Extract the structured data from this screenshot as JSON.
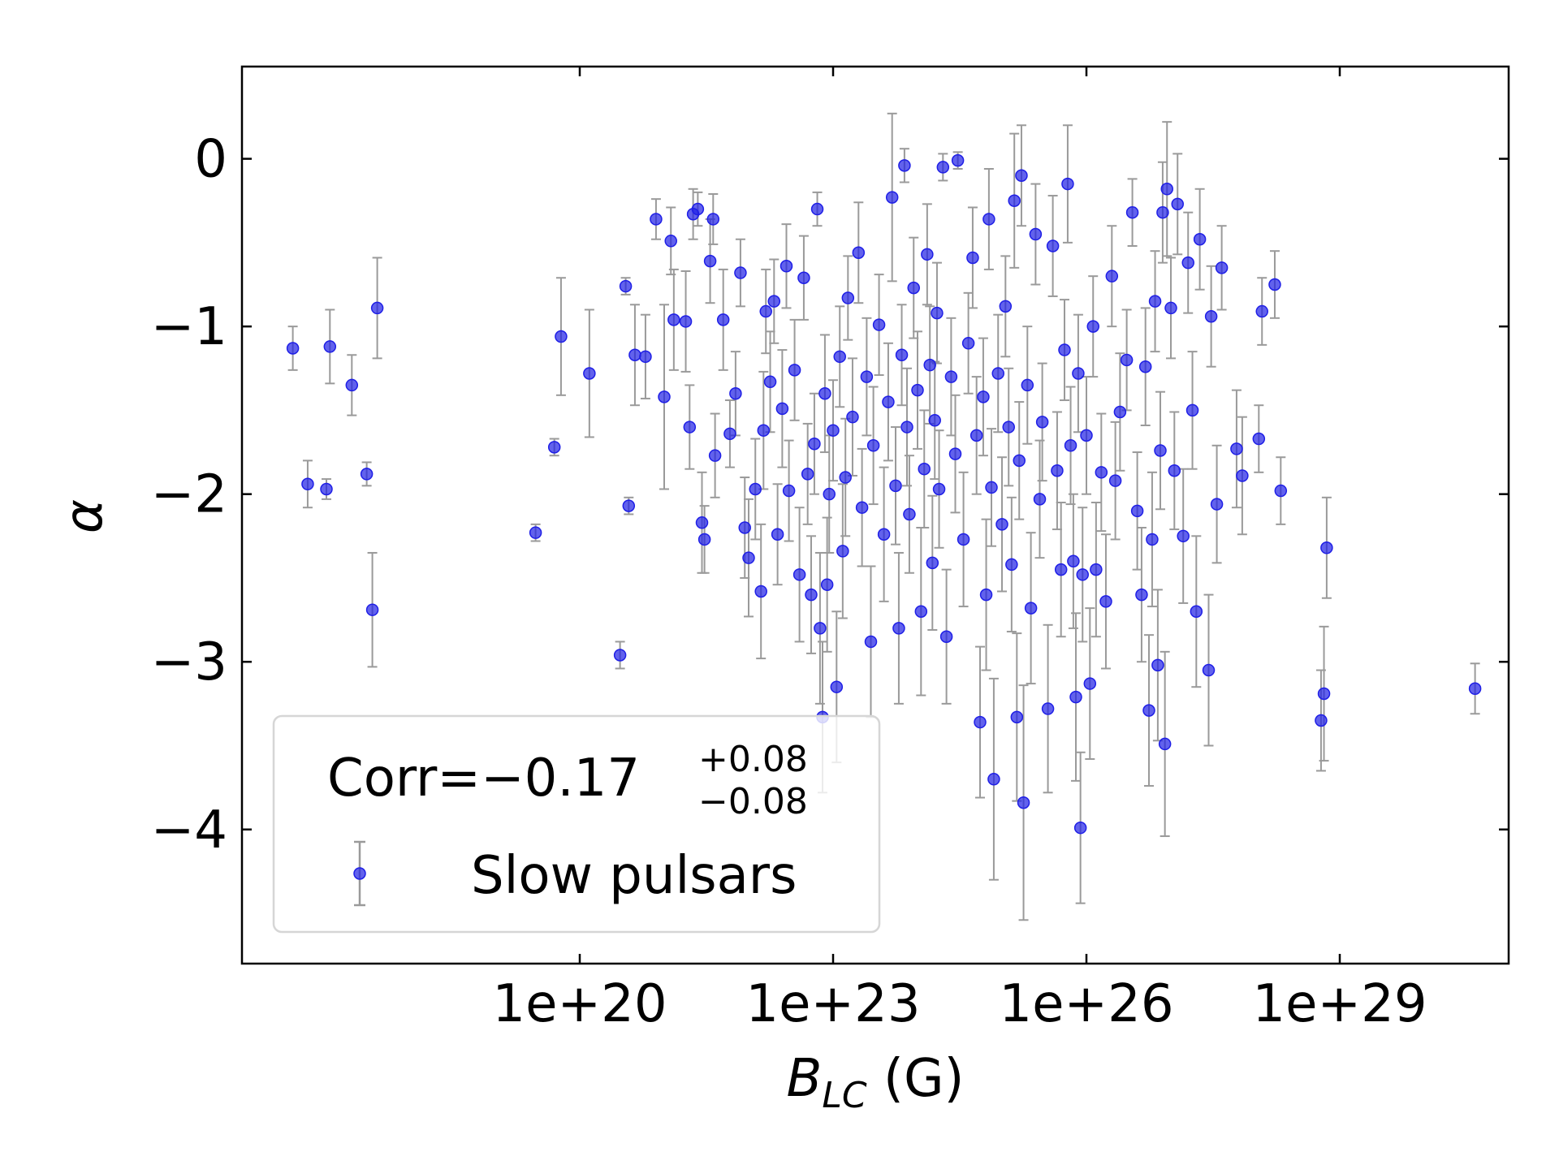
{
  "chart_data": {
    "type": "scatter",
    "xscale": "log",
    "xlim": [
      1e+16,
      1e+31
    ],
    "ylim": [
      -4.8,
      0.55
    ],
    "xticks": [
      1e+20,
      1e+23,
      1e+26,
      1e+29
    ],
    "xtick_labels": [
      "1e+20",
      "1e+23",
      "1e+26",
      "1e+29"
    ],
    "yticks": [
      0,
      -1,
      -2,
      -3,
      -4
    ],
    "ytick_labels": [
      "0",
      "−1",
      "−2",
      "−3",
      "−4"
    ],
    "xlabel_main": "B",
    "xlabel_sub": "LC",
    "xlabel_unit": " (G)",
    "ylabel": "α",
    "legend": {
      "placement": "lower-left",
      "title_prefix": "Corr=−0.17",
      "title_sup": "+0.08",
      "title_sub": "−0.08",
      "entry": "Slow pulsars"
    },
    "colors": {
      "marker": "#1f1fe6",
      "errorbar": "#9a9a9a"
    },
    "series": [
      {
        "name": "Slow pulsars",
        "points": [
          [
            4e+16,
            -1.13,
            0.13
          ],
          [
            6e+16,
            -1.94,
            0.14
          ],
          [
            1e+17,
            -1.97,
            0.06
          ],
          [
            1.1e+17,
            -1.12,
            0.22
          ],
          [
            2e+17,
            -1.35,
            0.18
          ],
          [
            3e+17,
            -1.88,
            0.07
          ],
          [
            3.5e+17,
            -2.69,
            0.34
          ],
          [
            4e+17,
            -0.89,
            0.3
          ],
          [
            3e+19,
            -2.23,
            0.05
          ],
          [
            5e+19,
            -1.72,
            0.05
          ],
          [
            6e+19,
            -1.06,
            0.35
          ],
          [
            1.3e+20,
            -1.28,
            0.38
          ],
          [
            3e+20,
            -2.96,
            0.08
          ],
          [
            3.5e+20,
            -0.76,
            0.05
          ],
          [
            3.8e+20,
            -2.07,
            0.05
          ],
          [
            4.5e+20,
            -1.17,
            0.3
          ],
          [
            6e+20,
            -1.18,
            0.25
          ],
          [
            8e+20,
            -0.36,
            0.12
          ],
          [
            1e+21,
            -1.42,
            0.55
          ],
          [
            1.2e+21,
            -0.49,
            0.2
          ],
          [
            1.3e+21,
            -0.96,
            0.3
          ],
          [
            1.8e+21,
            -0.97,
            0.3
          ],
          [
            2e+21,
            -1.6,
            0.25
          ],
          [
            2.2e+21,
            -0.33,
            0.15
          ],
          [
            2.5e+21,
            -0.3,
            0.1
          ],
          [
            2.8e+21,
            -2.17,
            0.3
          ],
          [
            3e+21,
            -2.27,
            0.2
          ],
          [
            3.5e+21,
            -0.61,
            0.25
          ],
          [
            3.8e+21,
            -0.36,
            0.15
          ],
          [
            4e+21,
            -1.77,
            0.25
          ],
          [
            5e+21,
            -0.96,
            0.3
          ],
          [
            6e+21,
            -1.64,
            0.2
          ],
          [
            7e+21,
            -1.4,
            0.25
          ],
          [
            8e+21,
            -0.68,
            0.2
          ],
          [
            9e+21,
            -2.2,
            0.3
          ],
          [
            1e+22,
            -2.38,
            0.35
          ],
          [
            1.2e+22,
            -1.97,
            0.3
          ],
          [
            1.4e+22,
            -2.58,
            0.4
          ],
          [
            1.5e+22,
            -1.62,
            0.35
          ],
          [
            1.6e+22,
            -0.91,
            0.25
          ],
          [
            1.8e+22,
            -1.33,
            0.3
          ],
          [
            2e+22,
            -0.85,
            0.25
          ],
          [
            2.2e+22,
            -2.24,
            0.3
          ],
          [
            2.5e+22,
            -1.49,
            0.35
          ],
          [
            2.8e+22,
            -0.64,
            0.25
          ],
          [
            3e+22,
            -1.98,
            0.3
          ],
          [
            3.5e+22,
            -1.26,
            0.3
          ],
          [
            4e+22,
            -2.48,
            0.4
          ],
          [
            4.5e+22,
            -0.71,
            0.25
          ],
          [
            5e+22,
            -1.88,
            0.3
          ],
          [
            5.5e+22,
            -2.6,
            0.35
          ],
          [
            6e+22,
            -1.7,
            0.3
          ],
          [
            6.5e+22,
            -0.3,
            0.1
          ],
          [
            7e+22,
            -2.8,
            0.45
          ],
          [
            7.5e+22,
            -3.33,
            0.45
          ],
          [
            8e+22,
            -1.4,
            0.35
          ],
          [
            8.5e+22,
            -2.54,
            0.4
          ],
          [
            9e+22,
            -2.0,
            0.35
          ],
          [
            1e+23,
            -1.62,
            0.3
          ],
          [
            1.1e+23,
            -3.15,
            0.45
          ],
          [
            1.2e+23,
            -1.18,
            0.3
          ],
          [
            1.3e+23,
            -2.34,
            0.4
          ],
          [
            1.4e+23,
            -1.9,
            0.35
          ],
          [
            1.5e+23,
            -0.83,
            0.25
          ],
          [
            1.7e+23,
            -1.54,
            0.35
          ],
          [
            2e+23,
            -0.56,
            0.3
          ],
          [
            2.2e+23,
            -2.08,
            0.35
          ],
          [
            2.5e+23,
            -1.3,
            0.35
          ],
          [
            2.8e+23,
            -2.88,
            0.45
          ],
          [
            3e+23,
            -1.71,
            0.35
          ],
          [
            3.5e+23,
            -0.99,
            0.3
          ],
          [
            4e+23,
            -2.24,
            0.4
          ],
          [
            4.5e+23,
            -1.45,
            0.35
          ],
          [
            5e+23,
            -0.23,
            0.5
          ],
          [
            5.5e+23,
            -1.95,
            0.35
          ],
          [
            6e+23,
            -2.8,
            0.45
          ],
          [
            6.5e+23,
            -1.17,
            0.3
          ],
          [
            7e+23,
            -0.04,
            0.1
          ],
          [
            7.5e+23,
            -1.6,
            0.35
          ],
          [
            8e+23,
            -2.12,
            0.35
          ],
          [
            9e+23,
            -0.77,
            0.3
          ],
          [
            1e+24,
            -1.38,
            0.35
          ],
          [
            1.1e+24,
            -2.7,
            0.5
          ],
          [
            1.2e+24,
            -1.85,
            0.35
          ],
          [
            1.3e+24,
            -0.57,
            0.3
          ],
          [
            1.4e+24,
            -1.23,
            0.35
          ],
          [
            1.5e+24,
            -2.41,
            0.4
          ],
          [
            1.6e+24,
            -1.56,
            0.35
          ],
          [
            1.7e+24,
            -0.92,
            0.3
          ],
          [
            1.8e+24,
            -1.97,
            0.35
          ],
          [
            2e+24,
            -0.05,
            0.08
          ],
          [
            2.2e+24,
            -2.85,
            0.4
          ],
          [
            2.5e+24,
            -1.3,
            0.35
          ],
          [
            2.8e+24,
            -1.76,
            0.35
          ],
          [
            3e+24,
            -0.01,
            0.05
          ],
          [
            3.5e+24,
            -2.27,
            0.4
          ],
          [
            4e+24,
            -1.1,
            0.3
          ],
          [
            4.5e+24,
            -0.59,
            0.3
          ],
          [
            5e+24,
            -1.65,
            0.35
          ],
          [
            5.5e+24,
            -3.36,
            0.45
          ],
          [
            6e+24,
            -1.42,
            0.35
          ],
          [
            6.5e+24,
            -2.6,
            0.45
          ],
          [
            7e+24,
            -0.36,
            0.3
          ],
          [
            7.5e+24,
            -1.96,
            0.35
          ],
          [
            8e+24,
            -3.7,
            0.6
          ],
          [
            9e+24,
            -1.28,
            0.35
          ],
          [
            1e+25,
            -2.18,
            0.4
          ],
          [
            1.1e+25,
            -0.88,
            0.3
          ],
          [
            1.2e+25,
            -1.6,
            0.35
          ],
          [
            1.3e+25,
            -2.42,
            0.4
          ],
          [
            1.4e+25,
            -0.25,
            0.4
          ],
          [
            1.5e+25,
            -3.33,
            0.5
          ],
          [
            1.6e+25,
            -1.8,
            0.35
          ],
          [
            1.7e+25,
            -0.1,
            0.3
          ],
          [
            1.8e+25,
            -3.84,
            0.7
          ],
          [
            2e+25,
            -1.35,
            0.35
          ],
          [
            2.2e+25,
            -2.68,
            0.45
          ],
          [
            2.5e+25,
            -0.45,
            0.3
          ],
          [
            2.8e+25,
            -2.03,
            0.35
          ],
          [
            3e+25,
            -1.57,
            0.35
          ],
          [
            3.5e+25,
            -3.28,
            0.5
          ],
          [
            4e+25,
            -0.52,
            0.3
          ],
          [
            4.5e+25,
            -1.86,
            0.35
          ],
          [
            5e+25,
            -2.45,
            0.4
          ],
          [
            5.5e+25,
            -1.14,
            0.3
          ],
          [
            6e+25,
            -0.15,
            0.35
          ],
          [
            6.5e+25,
            -1.71,
            0.35
          ],
          [
            7e+25,
            -2.4,
            0.4
          ],
          [
            7.5e+25,
            -3.21,
            0.5
          ],
          [
            8e+25,
            -1.28,
            0.35
          ],
          [
            8.5e+25,
            -3.99,
            0.45
          ],
          [
            9e+25,
            -2.48,
            0.4
          ],
          [
            1e+26,
            -1.65,
            0.35
          ],
          [
            1.1e+26,
            -3.13,
            0.45
          ],
          [
            1.2e+26,
            -1.0,
            0.3
          ],
          [
            1.3e+26,
            -2.45,
            0.4
          ],
          [
            1.5e+26,
            -1.87,
            0.35
          ],
          [
            1.7e+26,
            -2.64,
            0.4
          ],
          [
            2e+26,
            -0.7,
            0.3
          ],
          [
            2.2e+26,
            -1.92,
            0.35
          ],
          [
            2.5e+26,
            -1.51,
            0.35
          ],
          [
            3e+26,
            -1.2,
            0.3
          ],
          [
            3.5e+26,
            -0.32,
            0.2
          ],
          [
            4e+26,
            -2.1,
            0.35
          ],
          [
            4.5e+26,
            -2.6,
            0.4
          ],
          [
            5e+26,
            -1.24,
            0.35
          ],
          [
            5.5e+26,
            -3.29,
            0.45
          ],
          [
            6e+26,
            -2.27,
            0.4
          ],
          [
            6.5e+26,
            -0.85,
            0.3
          ],
          [
            7e+26,
            -3.02,
            0.45
          ],
          [
            7.5e+26,
            -1.74,
            0.35
          ],
          [
            8e+26,
            -0.32,
            0.3
          ],
          [
            8.5e+26,
            -3.49,
            0.55
          ],
          [
            9e+26,
            -0.18,
            0.4
          ],
          [
            1e+27,
            -0.89,
            0.3
          ],
          [
            1.1e+27,
            -1.86,
            0.35
          ],
          [
            1.2e+27,
            -0.27,
            0.3
          ],
          [
            1.4e+27,
            -2.25,
            0.4
          ],
          [
            1.6e+27,
            -0.62,
            0.3
          ],
          [
            1.8e+27,
            -1.5,
            0.35
          ],
          [
            2e+27,
            -2.7,
            0.45
          ],
          [
            2.2e+27,
            -0.48,
            0.3
          ],
          [
            2.8e+27,
            -3.05,
            0.45
          ],
          [
            3e+27,
            -0.94,
            0.3
          ],
          [
            3.5e+27,
            -2.06,
            0.35
          ],
          [
            4e+27,
            -0.65,
            0.25
          ],
          [
            6e+27,
            -1.73,
            0.35
          ],
          [
            7e+27,
            -1.89,
            0.35
          ],
          [
            1.1e+28,
            -1.67,
            0.2
          ],
          [
            1.2e+28,
            -0.91,
            0.2
          ],
          [
            1.7e+28,
            -0.75,
            0.2
          ],
          [
            2e+28,
            -1.98,
            0.2
          ],
          [
            6e+28,
            -3.35,
            0.3
          ],
          [
            6.5e+28,
            -3.19,
            0.4
          ],
          [
            7e+28,
            -2.32,
            0.3
          ],
          [
            4e+30,
            -3.16,
            0.15
          ]
        ]
      }
    ]
  }
}
